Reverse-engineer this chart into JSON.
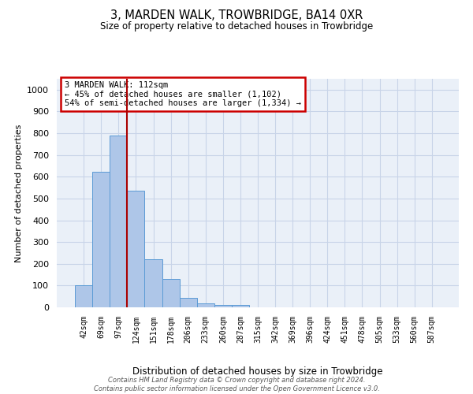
{
  "title": "3, MARDEN WALK, TROWBRIDGE, BA14 0XR",
  "subtitle": "Size of property relative to detached houses in Trowbridge",
  "xlabel": "Distribution of detached houses by size in Trowbridge",
  "ylabel": "Number of detached properties",
  "bin_labels": [
    "42sqm",
    "69sqm",
    "97sqm",
    "124sqm",
    "151sqm",
    "178sqm",
    "206sqm",
    "233sqm",
    "260sqm",
    "287sqm",
    "315sqm",
    "342sqm",
    "369sqm",
    "396sqm",
    "424sqm",
    "451sqm",
    "478sqm",
    "505sqm",
    "533sqm",
    "560sqm",
    "587sqm"
  ],
  "bar_values": [
    103,
    621,
    790,
    537,
    221,
    132,
    42,
    17,
    10,
    10,
    0,
    0,
    0,
    0,
    0,
    0,
    0,
    0,
    0,
    0,
    0
  ],
  "bar_color": "#aec6e8",
  "bar_edge_color": "#5b9bd5",
  "grid_color": "#c8d4e8",
  "vline_x_index": 2.5,
  "vline_color": "#aa0000",
  "annotation_line1": "3 MARDEN WALK: 112sqm",
  "annotation_line2": "← 45% of detached houses are smaller (1,102)",
  "annotation_line3": "54% of semi-detached houses are larger (1,334) →",
  "annotation_box_color": "#ffffff",
  "annotation_border_color": "#cc0000",
  "footer_text": "Contains HM Land Registry data © Crown copyright and database right 2024.\nContains public sector information licensed under the Open Government Licence v3.0.",
  "ylim": [
    0,
    1050
  ],
  "yticks": [
    0,
    100,
    200,
    300,
    400,
    500,
    600,
    700,
    800,
    900,
    1000
  ],
  "bg_color": "#eaf0f8",
  "plot_bg_color": "#ffffff"
}
